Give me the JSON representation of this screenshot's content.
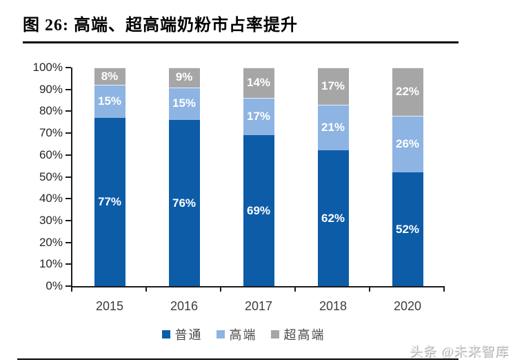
{
  "figure": {
    "title": "图 26: 高端、超高端奶粉市占率提升",
    "watermark": "头条 @未来智库"
  },
  "chart_data": {
    "type": "bar",
    "stacked": true,
    "title": "高端、超高端奶粉市占率提升",
    "xlabel": "",
    "ylabel": "",
    "categories": [
      "2015",
      "2016",
      "2017",
      "2018",
      "2020"
    ],
    "series": [
      {
        "name": "普通",
        "color": "#0d5ca8",
        "values": [
          77,
          76,
          69,
          62,
          52
        ]
      },
      {
        "name": "高端",
        "color": "#8db4e2",
        "values": [
          15,
          15,
          17,
          21,
          26
        ]
      },
      {
        "name": "超高端",
        "color": "#a6a6a6",
        "values": [
          8,
          9,
          14,
          17,
          22
        ]
      }
    ],
    "value_suffix": "%",
    "y_ticks": [
      "100%",
      "90%",
      "80%",
      "70%",
      "60%",
      "50%",
      "40%",
      "30%",
      "20%",
      "10%",
      "0%"
    ],
    "ylim": [
      0,
      100
    ],
    "grid": false,
    "legend_position": "bottom",
    "data_labels": true,
    "data_label_color": "#ffffff"
  }
}
